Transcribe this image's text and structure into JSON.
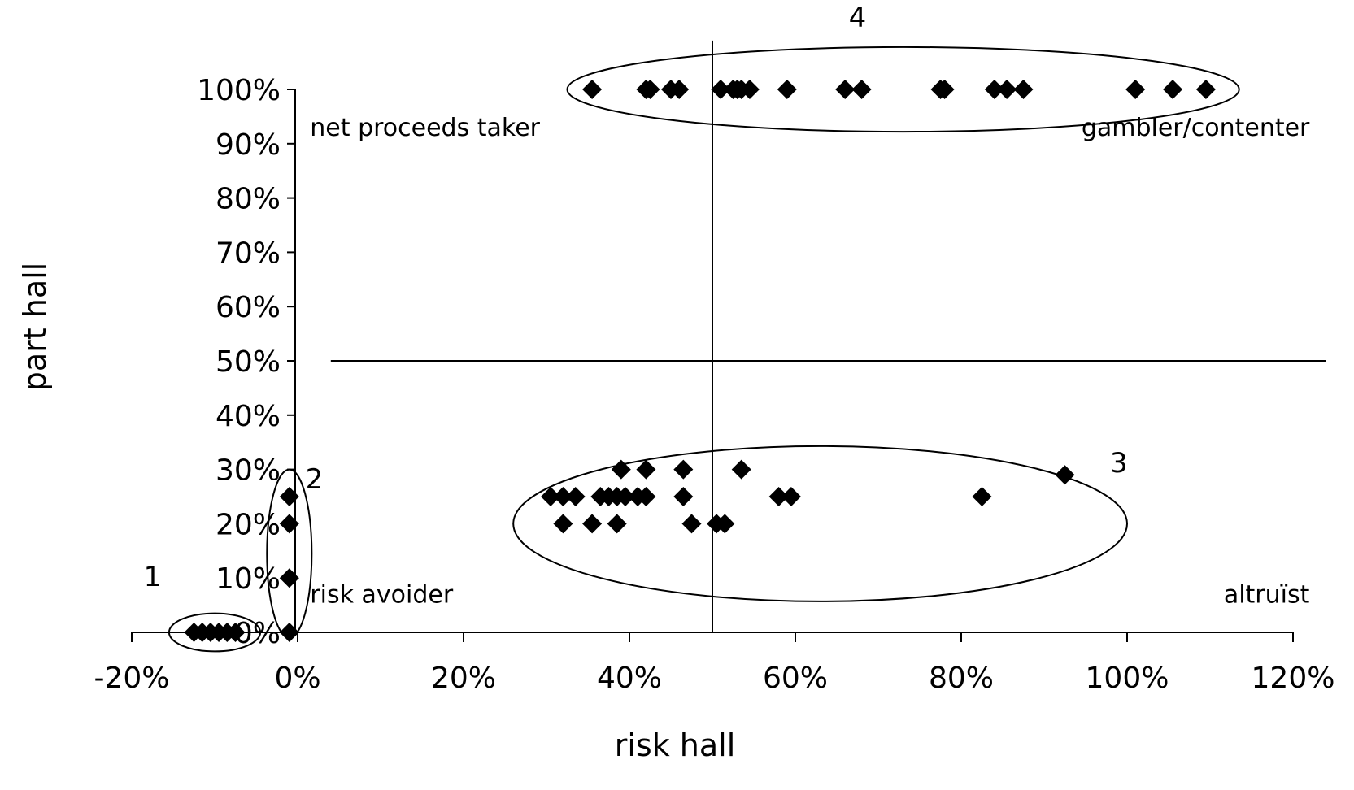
{
  "chart_data": {
    "type": "scatter",
    "title": "",
    "xlabel": "risk hall",
    "ylabel": "part hall",
    "xlim": [
      -0.2,
      1.2
    ],
    "ylim": [
      0,
      1.0
    ],
    "xticks": [
      -0.2,
      0,
      0.2,
      0.4,
      0.6,
      0.8,
      1.0,
      1.2
    ],
    "xtick_labels": [
      "-20%",
      "0%",
      "20%",
      "40%",
      "60%",
      "80%",
      "100%",
      "120%"
    ],
    "yticks": [
      0,
      0.1,
      0.2,
      0.3,
      0.4,
      0.5,
      0.6,
      0.7,
      0.8,
      0.9,
      1.0
    ],
    "ytick_labels": [
      "0%",
      "10%",
      "20%",
      "30%",
      "40%",
      "50%",
      "60%",
      "70%",
      "80%",
      "90%",
      "100%"
    ],
    "marker": "diamond",
    "marker_color": "#000000",
    "grid": false,
    "legend": "none",
    "reference_lines": [
      {
        "orientation": "vertical",
        "x": 0.5,
        "y_from": 0,
        "y_to": 1.09
      },
      {
        "orientation": "horizontal",
        "y": 0.5,
        "x_from": 0.04,
        "x_to": 1.24
      }
    ],
    "points": [
      {
        "x": 0.355,
        "y": 1.0
      },
      {
        "x": 0.42,
        "y": 1.0
      },
      {
        "x": 0.425,
        "y": 1.0
      },
      {
        "x": 0.45,
        "y": 1.0
      },
      {
        "x": 0.46,
        "y": 1.0
      },
      {
        "x": 0.51,
        "y": 1.0
      },
      {
        "x": 0.525,
        "y": 1.0
      },
      {
        "x": 0.53,
        "y": 1.0
      },
      {
        "x": 0.535,
        "y": 1.0
      },
      {
        "x": 0.545,
        "y": 1.0
      },
      {
        "x": 0.59,
        "y": 1.0
      },
      {
        "x": 0.66,
        "y": 1.0
      },
      {
        "x": 0.68,
        "y": 1.0
      },
      {
        "x": 0.775,
        "y": 1.0
      },
      {
        "x": 0.78,
        "y": 1.0
      },
      {
        "x": 0.84,
        "y": 1.0
      },
      {
        "x": 0.855,
        "y": 1.0
      },
      {
        "x": 0.875,
        "y": 1.0
      },
      {
        "x": 1.01,
        "y": 1.0
      },
      {
        "x": 1.055,
        "y": 1.0
      },
      {
        "x": 1.095,
        "y": 1.0
      },
      {
        "x": 0.305,
        "y": 0.25
      },
      {
        "x": 0.32,
        "y": 0.25
      },
      {
        "x": 0.335,
        "y": 0.25
      },
      {
        "x": 0.365,
        "y": 0.25
      },
      {
        "x": 0.375,
        "y": 0.25
      },
      {
        "x": 0.385,
        "y": 0.25
      },
      {
        "x": 0.395,
        "y": 0.25
      },
      {
        "x": 0.41,
        "y": 0.25
      },
      {
        "x": 0.42,
        "y": 0.25
      },
      {
        "x": 0.465,
        "y": 0.25
      },
      {
        "x": 0.58,
        "y": 0.25
      },
      {
        "x": 0.595,
        "y": 0.25
      },
      {
        "x": 0.825,
        "y": 0.25
      },
      {
        "x": 0.39,
        "y": 0.3
      },
      {
        "x": 0.42,
        "y": 0.3
      },
      {
        "x": 0.465,
        "y": 0.3
      },
      {
        "x": 0.535,
        "y": 0.3
      },
      {
        "x": 0.925,
        "y": 0.29
      },
      {
        "x": 0.32,
        "y": 0.2
      },
      {
        "x": 0.355,
        "y": 0.2
      },
      {
        "x": 0.385,
        "y": 0.2
      },
      {
        "x": 0.475,
        "y": 0.2
      },
      {
        "x": 0.505,
        "y": 0.2
      },
      {
        "x": 0.515,
        "y": 0.2
      },
      {
        "x": -0.01,
        "y": 0.25
      },
      {
        "x": -0.01,
        "y": 0.2
      },
      {
        "x": -0.01,
        "y": 0.1
      },
      {
        "x": -0.01,
        "y": 0.0
      },
      {
        "x": -0.125,
        "y": 0.0
      },
      {
        "x": -0.115,
        "y": 0.0
      },
      {
        "x": -0.105,
        "y": 0.0
      },
      {
        "x": -0.095,
        "y": 0.0
      },
      {
        "x": -0.085,
        "y": 0.0
      },
      {
        "x": -0.075,
        "y": 0.0
      }
    ],
    "clusters": [
      {
        "label": "1",
        "cx": -0.1,
        "cy": 0.0,
        "rx": 0.055,
        "ry": 0.035
      },
      {
        "label": "2",
        "cx": -0.01,
        "cy": 0.145,
        "rx": 0.027,
        "ry": 0.155
      },
      {
        "label": "3",
        "cx": 0.63,
        "cy": 0.2,
        "rx": 0.37,
        "ry": 0.143
      },
      {
        "label": "4",
        "cx": 0.73,
        "cy": 1.0,
        "rx": 0.405,
        "ry": 0.078
      }
    ],
    "annotations": [
      {
        "text": "net proceeds taker",
        "x": 0.015,
        "y": 0.915
      },
      {
        "text": "gambler/contenter",
        "x": 1.22,
        "y": 0.915,
        "anchor": "end"
      },
      {
        "text": "risk avoider",
        "x": 0.015,
        "y": 0.055
      },
      {
        "text": "altruïst",
        "x": 1.22,
        "y": 0.055,
        "anchor": "end"
      }
    ],
    "cluster_labels": [
      {
        "text": "1",
        "x": -0.175,
        "y": 0.085
      },
      {
        "text": "2",
        "x": 0.02,
        "y": 0.265
      },
      {
        "text": "3",
        "x": 0.99,
        "y": 0.295
      },
      {
        "text": "4",
        "x": 0.675,
        "y": 1.115
      }
    ]
  }
}
